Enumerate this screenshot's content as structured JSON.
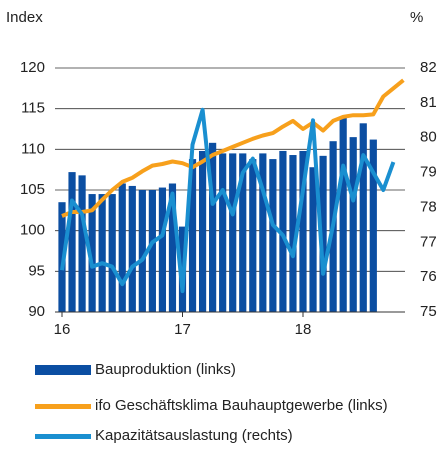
{
  "chart_data": {
    "type": "bar-line",
    "y_label": "Index",
    "y2_label": "%",
    "categories": [
      "16",
      null,
      null,
      null,
      null,
      null,
      null,
      null,
      null,
      null,
      null,
      null,
      "17",
      null,
      null,
      null,
      null,
      null,
      null,
      null,
      null,
      null,
      null,
      null,
      "18",
      null,
      null,
      null,
      null,
      null,
      null,
      null,
      null,
      null,
      null
    ],
    "ylim": [
      90,
      120
    ],
    "yticks": [
      90,
      95,
      100,
      105,
      110,
      115,
      120
    ],
    "y2lim": [
      75,
      82
    ],
    "y2ticks": [
      75,
      76,
      77,
      78,
      79,
      80,
      81,
      82
    ],
    "grid": true,
    "series": [
      {
        "name": "Bauproduktion (links)",
        "kind": "bar",
        "color": "#0b4ea2",
        "values": [
          103.5,
          107.2,
          106.8,
          104.5,
          104.5,
          104.5,
          105.8,
          105.5,
          105,
          105,
          105.3,
          105.8,
          100.5,
          108.8,
          109.8,
          110.8,
          109.5,
          109.5,
          109.5,
          108.8,
          109.5,
          108.8,
          109.8,
          109.3,
          109.8,
          107.8,
          109.2,
          111,
          114,
          111.5,
          113.2,
          111.2,
          null,
          null,
          null
        ]
      },
      {
        "name": "ifo Geschäftsklima Bauhauptgewerbe (links)",
        "kind": "line",
        "color": "#f7a01c",
        "values": [
          101.8,
          102.3,
          102.3,
          102.5,
          103.8,
          105,
          106,
          106.5,
          107.3,
          108,
          108.2,
          108.5,
          108.3,
          107.8,
          108.5,
          109.3,
          109.8,
          110.3,
          110.8,
          111.3,
          111.7,
          112,
          112.8,
          113.5,
          112.5,
          113.3,
          112.3,
          113.5,
          114,
          114.2,
          114.2,
          114.3,
          116.5,
          117.5,
          118.5
        ]
      },
      {
        "name": "Kapazitätsauslastung (rechts)",
        "kind": "line",
        "axis": "y2",
        "color": "#1a8fd0",
        "values": [
          76.2,
          78.2,
          77.8,
          76.3,
          76.4,
          76.3,
          75.8,
          76.3,
          76.5,
          77,
          77.2,
          78.4,
          75.6,
          79.8,
          80.8,
          78.1,
          78.5,
          77.8,
          79,
          79.4,
          78.5,
          77.5,
          77.2,
          76.6,
          78.5,
          80.5,
          76.1,
          77.5,
          79.2,
          78.2,
          79.5,
          79,
          78.5,
          79.3,
          null
        ]
      }
    ]
  }
}
